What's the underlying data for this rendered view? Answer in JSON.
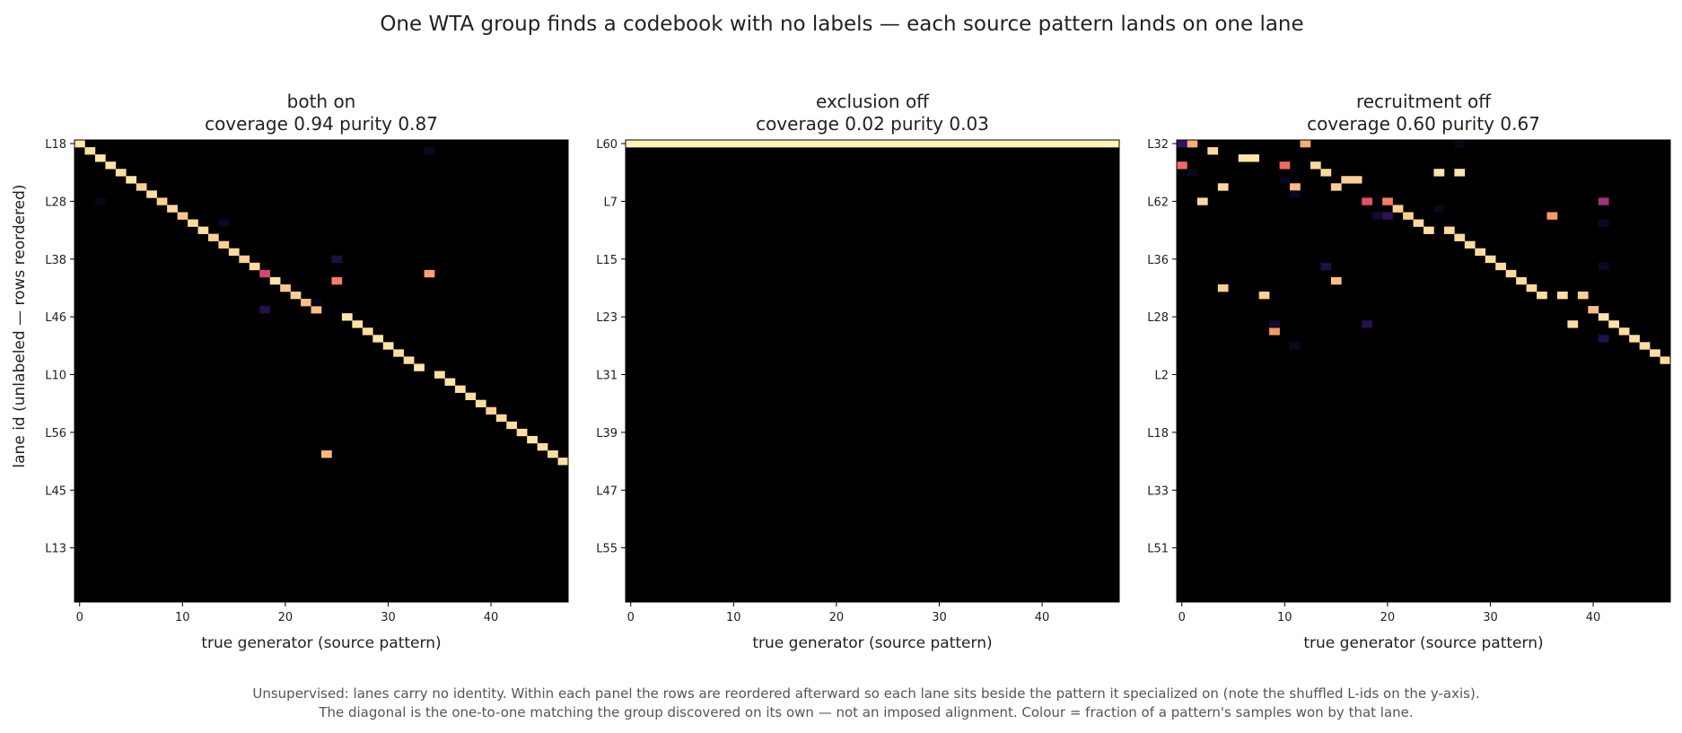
{
  "figure": {
    "title": "One WTA group finds a codebook with no labels — each source pattern lands on one lane",
    "caption_lines": [
      "Unsupervised: lanes carry no identity. Within each panel the rows are reordered afterward so each lane sits beside the pattern it specialized on (note the shuffled L-ids on the y-axis).",
      "The diagonal is the one-to-one matching the group discovered on its own — not an imposed alignment. Colour = fraction of a pattern's samples won by that lane."
    ]
  },
  "colors": {
    "background": "#000000",
    "colormap": "magma",
    "stops": [
      "#000004",
      "#1d1147",
      "#51127c",
      "#822681",
      "#b73779",
      "#e75263",
      "#fc8961",
      "#fec488",
      "#fcfdbf"
    ]
  },
  "chart_data": [
    {
      "type": "heatmap",
      "panel": "both on",
      "title": "both on",
      "subtitle": "coverage 0.94   purity 0.87",
      "xlabel": "true generator (source pattern)",
      "ylabel": "lane id (unlabeled — rows reordered)",
      "n_cols": 48,
      "n_rows": 64,
      "xticks": [
        0,
        10,
        20,
        30,
        40
      ],
      "yticks": [
        {
          "row": 0,
          "label": "L18"
        },
        {
          "row": 8,
          "label": "L28"
        },
        {
          "row": 16,
          "label": "L38"
        },
        {
          "row": 24,
          "label": "L46"
        },
        {
          "row": 32,
          "label": "L10"
        },
        {
          "row": 40,
          "label": "L56"
        },
        {
          "row": 48,
          "label": "L45"
        },
        {
          "row": 56,
          "label": "L13"
        }
      ],
      "cells": [
        [
          0,
          0,
          0.95
        ],
        [
          1,
          1,
          0.93
        ],
        [
          2,
          2,
          0.95
        ],
        [
          3,
          3,
          0.94
        ],
        [
          4,
          4,
          0.93
        ],
        [
          5,
          5,
          0.95
        ],
        [
          6,
          6,
          0.9
        ],
        [
          7,
          7,
          0.93
        ],
        [
          8,
          8,
          0.9
        ],
        [
          9,
          9,
          0.92
        ],
        [
          10,
          10,
          0.88
        ],
        [
          11,
          11,
          0.92
        ],
        [
          12,
          12,
          0.93
        ],
        [
          13,
          13,
          0.9
        ],
        [
          14,
          14,
          0.9
        ],
        [
          15,
          15,
          0.92
        ],
        [
          16,
          16,
          0.9
        ],
        [
          17,
          17,
          0.93
        ],
        [
          18,
          18,
          0.58
        ],
        [
          19,
          19,
          0.94
        ],
        [
          20,
          20,
          0.88
        ],
        [
          21,
          21,
          0.9
        ],
        [
          22,
          22,
          0.86
        ],
        [
          23,
          23,
          0.86
        ],
        [
          26,
          24,
          0.95
        ],
        [
          27,
          25,
          0.95
        ],
        [
          28,
          26,
          0.93
        ],
        [
          29,
          27,
          0.95
        ],
        [
          30,
          28,
          0.95
        ],
        [
          31,
          29,
          0.93
        ],
        [
          32,
          30,
          0.93
        ],
        [
          33,
          31,
          0.95
        ],
        [
          35,
          32,
          0.93
        ],
        [
          36,
          33,
          0.95
        ],
        [
          37,
          34,
          0.93
        ],
        [
          38,
          35,
          0.93
        ],
        [
          39,
          36,
          0.93
        ],
        [
          40,
          37,
          0.9
        ],
        [
          41,
          38,
          0.92
        ],
        [
          42,
          39,
          0.93
        ],
        [
          43,
          40,
          0.93
        ],
        [
          44,
          41,
          0.95
        ],
        [
          45,
          42,
          0.93
        ],
        [
          46,
          43,
          0.93
        ],
        [
          47,
          44,
          0.93
        ],
        [
          25,
          19,
          0.72
        ],
        [
          34,
          18,
          0.8
        ],
        [
          24,
          43,
          0.85
        ],
        [
          18,
          23,
          0.14
        ],
        [
          25,
          16,
          0.12
        ],
        [
          34,
          1,
          0.05
        ],
        [
          2,
          8,
          0.04
        ],
        [
          23,
          22,
          0.04
        ],
        [
          14,
          11,
          0.05
        ]
      ]
    },
    {
      "type": "heatmap",
      "panel": "exclusion off",
      "title": "exclusion off",
      "subtitle": "coverage 0.02   purity 0.03",
      "xlabel": "true generator (source pattern)",
      "ylabel": "",
      "n_cols": 48,
      "n_rows": 64,
      "xticks": [
        0,
        10,
        20,
        30,
        40
      ],
      "yticks": [
        {
          "row": 0,
          "label": "L60"
        },
        {
          "row": 8,
          "label": "L7"
        },
        {
          "row": 16,
          "label": "L15"
        },
        {
          "row": 24,
          "label": "L23"
        },
        {
          "row": 32,
          "label": "L31"
        },
        {
          "row": 40,
          "label": "L39"
        },
        {
          "row": 48,
          "label": "L47"
        },
        {
          "row": 56,
          "label": "L55"
        }
      ],
      "full_rows": [
        [
          0,
          0.98
        ]
      ],
      "cells": []
    },
    {
      "type": "heatmap",
      "panel": "recruitment off",
      "title": "recruitment off",
      "subtitle": "coverage 0.60   purity 0.67",
      "xlabel": "true generator (source pattern)",
      "ylabel": "",
      "n_cols": 48,
      "n_rows": 64,
      "xticks": [
        0,
        10,
        20,
        30,
        40
      ],
      "yticks": [
        {
          "row": 0,
          "label": "L32"
        },
        {
          "row": 8,
          "label": "L62"
        },
        {
          "row": 16,
          "label": "L36"
        },
        {
          "row": 24,
          "label": "L28"
        },
        {
          "row": 32,
          "label": "L2"
        },
        {
          "row": 40,
          "label": "L18"
        },
        {
          "row": 48,
          "label": "L33"
        },
        {
          "row": 56,
          "label": "L51"
        }
      ],
      "cells": [
        [
          1,
          0,
          0.82
        ],
        [
          12,
          0,
          0.82
        ],
        [
          0,
          3,
          0.68
        ],
        [
          3,
          1,
          0.92
        ],
        [
          6,
          2,
          0.95
        ],
        [
          7,
          2,
          0.95
        ],
        [
          10,
          3,
          0.68
        ],
        [
          13,
          3,
          0.92
        ],
        [
          14,
          4,
          0.92
        ],
        [
          16,
          5,
          0.9
        ],
        [
          17,
          5,
          0.9
        ],
        [
          15,
          6,
          0.9
        ],
        [
          4,
          6,
          0.92
        ],
        [
          11,
          6,
          0.85
        ],
        [
          25,
          4,
          0.95
        ],
        [
          27,
          4,
          0.95
        ],
        [
          2,
          8,
          0.92
        ],
        [
          18,
          8,
          0.62
        ],
        [
          20,
          8,
          0.72
        ],
        [
          21,
          9,
          0.9
        ],
        [
          22,
          10,
          0.9
        ],
        [
          23,
          11,
          0.92
        ],
        [
          24,
          12,
          0.93
        ],
        [
          26,
          12,
          0.92
        ],
        [
          27,
          13,
          0.92
        ],
        [
          28,
          14,
          0.93
        ],
        [
          29,
          15,
          0.93
        ],
        [
          30,
          16,
          0.93
        ],
        [
          31,
          17,
          0.93
        ],
        [
          32,
          18,
          0.92
        ],
        [
          33,
          19,
          0.92
        ],
        [
          34,
          20,
          0.92
        ],
        [
          35,
          21,
          0.93
        ],
        [
          37,
          21,
          0.93
        ],
        [
          39,
          21,
          0.9
        ],
        [
          15,
          19,
          0.86
        ],
        [
          4,
          20,
          0.9
        ],
        [
          8,
          21,
          0.9
        ],
        [
          40,
          23,
          0.86
        ],
        [
          41,
          24,
          0.95
        ],
        [
          42,
          25,
          0.95
        ],
        [
          43,
          26,
          0.93
        ],
        [
          44,
          27,
          0.93
        ],
        [
          45,
          28,
          0.93
        ],
        [
          46,
          29,
          0.93
        ],
        [
          47,
          30,
          0.93
        ],
        [
          38,
          25,
          0.93
        ],
        [
          9,
          26,
          0.78
        ],
        [
          41,
          8,
          0.45
        ],
        [
          36,
          10,
          0.78
        ],
        [
          0,
          0,
          0.18
        ],
        [
          18,
          25,
          0.14
        ],
        [
          20,
          10,
          0.16
        ],
        [
          19,
          10,
          0.08
        ],
        [
          41,
          17,
          0.06
        ],
        [
          14,
          17,
          0.12
        ],
        [
          41,
          27,
          0.14
        ],
        [
          27,
          0,
          0.04
        ],
        [
          41,
          11,
          0.06
        ],
        [
          11,
          7,
          0.05
        ],
        [
          1,
          4,
          0.05
        ],
        [
          10,
          5,
          0.05
        ],
        [
          9,
          25,
          0.08
        ],
        [
          25,
          9,
          0.05
        ],
        [
          11,
          28,
          0.05
        ]
      ]
    }
  ]
}
